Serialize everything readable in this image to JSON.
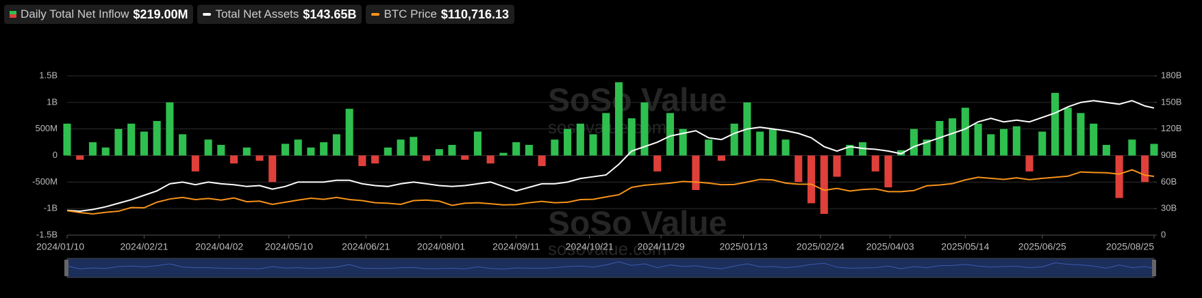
{
  "legend": [
    {
      "label": "Daily Total Net Inflow",
      "value": "$219.00M"
    },
    {
      "label": "Total Net Assets",
      "value": "$143.65B"
    },
    {
      "label": "BTC Price",
      "value": "$110,716.13"
    }
  ],
  "watermark": {
    "name": "SoSo Value",
    "site": "sosovalue.com"
  },
  "chart_data": {
    "type": "bar",
    "x": [
      "2024/01/10",
      "2024/01/17",
      "2024/01/24",
      "2024/01/31",
      "2024/02/07",
      "2024/02/14",
      "2024/02/21",
      "2024/02/28",
      "2024/03/06",
      "2024/03/13",
      "2024/03/20",
      "2024/03/27",
      "2024/04/03",
      "2024/04/10",
      "2024/04/17",
      "2024/04/24",
      "2024/05/01",
      "2024/05/08",
      "2024/05/15",
      "2024/05/22",
      "2024/05/29",
      "2024/06/05",
      "2024/06/12",
      "2024/06/19",
      "2024/06/26",
      "2024/07/03",
      "2024/07/10",
      "2024/07/17",
      "2024/07/24",
      "2024/07/31",
      "2024/08/07",
      "2024/08/14",
      "2024/08/21",
      "2024/08/28",
      "2024/09/04",
      "2024/09/11",
      "2024/09/18",
      "2024/09/25",
      "2024/10/02",
      "2024/10/09",
      "2024/10/16",
      "2024/10/23",
      "2024/10/30",
      "2024/11/06",
      "2024/11/13",
      "2024/11/20",
      "2024/11/27",
      "2024/12/04",
      "2024/12/11",
      "2024/12/18",
      "2024/12/25",
      "2025/01/01",
      "2025/01/08",
      "2025/01/15",
      "2025/01/22",
      "2025/01/29",
      "2025/02/05",
      "2025/02/12",
      "2025/02/19",
      "2025/02/26",
      "2025/03/05",
      "2025/03/12",
      "2025/03/19",
      "2025/03/26",
      "2025/04/02",
      "2025/04/09",
      "2025/04/16",
      "2025/04/23",
      "2025/04/30",
      "2025/05/07",
      "2025/05/14",
      "2025/05/21",
      "2025/05/28",
      "2025/06/04",
      "2025/06/11",
      "2025/06/18",
      "2025/06/25",
      "2025/07/02",
      "2025/07/09",
      "2025/07/16",
      "2025/07/23",
      "2025/07/30",
      "2025/08/06",
      "2025/08/13",
      "2025/08/20",
      "2025/08/25"
    ],
    "series": [
      {
        "name": "Daily Total Net Inflow",
        "color": "#2fbf4f",
        "negative_color": "#e0403a",
        "axis": "y",
        "values": [
          600,
          -80,
          250,
          150,
          500,
          600,
          450,
          650,
          1000,
          400,
          -300,
          300,
          200,
          -150,
          150,
          -100,
          -500,
          220,
          300,
          150,
          250,
          400,
          880,
          -200,
          -150,
          150,
          300,
          350,
          -100,
          120,
          200,
          -80,
          450,
          -150,
          50,
          250,
          200,
          -200,
          300,
          500,
          600,
          400,
          800,
          1380,
          700,
          1000,
          -300,
          800,
          500,
          -650,
          300,
          -100,
          600,
          1000,
          450,
          500,
          300,
          -500,
          -900,
          -1100,
          -400,
          200,
          250,
          -300,
          -600,
          100,
          500,
          300,
          650,
          700,
          900,
          600,
          400,
          500,
          550,
          -300,
          450,
          1180,
          900,
          800,
          600,
          200,
          -800,
          300,
          -500,
          219
        ]
      },
      {
        "name": "Total Net Assets",
        "color": "#ffffff",
        "axis": "y2",
        "values": [
          28,
          27,
          29,
          32,
          36,
          40,
          45,
          50,
          58,
          60,
          57,
          60,
          58,
          57,
          55,
          56,
          52,
          55,
          60,
          60,
          60,
          62,
          62,
          58,
          56,
          55,
          58,
          60,
          58,
          56,
          55,
          56,
          58,
          60,
          55,
          50,
          54,
          58,
          58,
          60,
          64,
          66,
          68,
          80,
          95,
          100,
          105,
          112,
          115,
          118,
          110,
          108,
          115,
          120,
          122,
          120,
          118,
          115,
          110,
          100,
          95,
          100,
          98,
          97,
          95,
          92,
          100,
          105,
          110,
          115,
          120,
          128,
          132,
          128,
          130,
          128,
          133,
          138,
          145,
          150,
          152,
          150,
          148,
          152,
          146,
          143.65
        ]
      },
      {
        "name": "BTC Price",
        "color": "#f7931a",
        "axis": "y3",
        "values": [
          46000,
          42500,
          40000,
          43000,
          45000,
          52000,
          51500,
          62000,
          68000,
          71000,
          67000,
          69000,
          66000,
          70000,
          63000,
          64000,
          58000,
          62000,
          66000,
          69500,
          67500,
          71000,
          67000,
          65000,
          61000,
          60000,
          58000,
          65000,
          66000,
          64000,
          56000,
          60000,
          61000,
          59000,
          57000,
          57500,
          61000,
          63500,
          61000,
          62000,
          67000,
          67500,
          72000,
          76000,
          90000,
          94000,
          96000,
          98000,
          101000,
          100000,
          98000,
          95000,
          95500,
          100000,
          105000,
          104000,
          98000,
          96000,
          96000,
          84500,
          88000,
          83000,
          86000,
          87000,
          82000,
          82000,
          84000,
          93000,
          94500,
          97000,
          104000,
          109000,
          107000,
          105000,
          108000,
          104500,
          107000,
          109000,
          111000,
          119000,
          118000,
          117500,
          115000,
          123000,
          113000,
          110716
        ]
      }
    ],
    "xlim": [
      "2024/01/10",
      "2025/08/25"
    ],
    "xticks": [
      "2024/01/10",
      "2024/02/21",
      "2024/04/02",
      "2024/05/10",
      "2024/06/21",
      "2024/08/01",
      "2024/09/11",
      "2024/10/21",
      "2024/11/29",
      "2025/01/13",
      "2025/02/24",
      "2025/04/03",
      "2025/05/14",
      "2025/06/25",
      "2025/08/25"
    ],
    "ylim": [
      -1500,
      1500
    ],
    "yticks": [
      {
        "value": -1500,
        "label": "-1.5B"
      },
      {
        "value": -1000,
        "label": "-1B"
      },
      {
        "value": -500,
        "label": "-500M"
      },
      0,
      {
        "value": 500,
        "label": "500M"
      },
      {
        "value": 1000,
        "label": "1B"
      },
      {
        "value": 1500,
        "label": "1.5B"
      }
    ],
    "y2lim": [
      0,
      180
    ],
    "y2ticks": [
      0,
      {
        "value": 30,
        "label": "30B"
      },
      {
        "value": 60,
        "label": "60B"
      },
      {
        "value": 90,
        "label": "90B"
      },
      {
        "value": 120,
        "label": "120B"
      },
      {
        "value": 150,
        "label": "150B"
      },
      {
        "value": 180,
        "label": "180B"
      }
    ],
    "y3lim": [
      0,
      300000
    ],
    "grid": true
  }
}
